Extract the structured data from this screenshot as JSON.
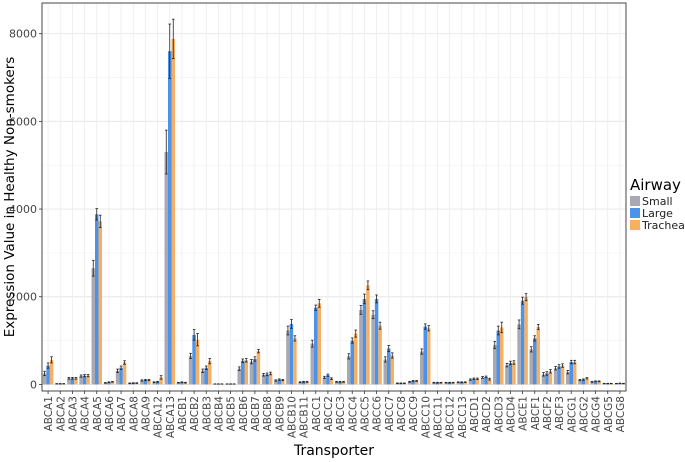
{
  "chart_data": {
    "type": "bar",
    "xlabel": "Transporter",
    "ylabel": "Expression Value in Healthy Non-smokers",
    "ylim": [
      -150,
      8700
    ],
    "yticks": [
      0,
      2000,
      4000,
      6000,
      8000
    ],
    "grid": true,
    "legend": {
      "title": "Airway",
      "placement": "right"
    },
    "colors": {
      "Small": "#a9a9b4",
      "Large": "#4c92e8",
      "Trachea": "#f5b066"
    },
    "categories": [
      "ABCA1",
      "ABCA2",
      "ABCA3",
      "ABCA4",
      "ABCA5",
      "ABCA6",
      "ABCA7",
      "ABCA8",
      "ABCA9",
      "ABCA12",
      "ABCA13",
      "ABCB1",
      "ABCB2",
      "ABCB3",
      "ABCB4",
      "ABCB5",
      "ABCB6",
      "ABCB7",
      "ABCB8",
      "ABCB9",
      "ABCB10",
      "ABCB11",
      "ABCC1",
      "ABCC2",
      "ABCC3",
      "ABCC4",
      "ABCC5",
      "ABCC6",
      "ABCC7",
      "ABCC8",
      "ABCC9",
      "ABCC10",
      "ABCC11",
      "ABCC12",
      "ABCC13",
      "ABCD1",
      "ABCD2",
      "ABCD3",
      "ABCD4",
      "ABCE1",
      "ABCF1",
      "ABCF2",
      "ABCF3",
      "ABCG1",
      "ABCG2",
      "ABCG4",
      "ABCG5",
      "ABCG8"
    ],
    "series": [
      {
        "name": "Small",
        "values": [
          250,
          15,
          140,
          190,
          2650,
          35,
          310,
          25,
          90,
          50,
          5300,
          40,
          650,
          310,
          10,
          10,
          360,
          520,
          220,
          90,
          1230,
          50,
          930,
          160,
          60,
          640,
          1700,
          1590,
          570,
          25,
          60,
          750,
          40,
          40,
          50,
          110,
          160,
          900,
          440,
          1370,
          800,
          230,
          370,
          280,
          100,
          60,
          20,
          20
        ],
        "errors": [
          50,
          5,
          20,
          25,
          180,
          8,
          40,
          8,
          15,
          10,
          500,
          8,
          60,
          40,
          3,
          3,
          40,
          50,
          30,
          15,
          100,
          10,
          80,
          25,
          10,
          60,
          100,
          90,
          60,
          8,
          10,
          60,
          8,
          8,
          8,
          15,
          20,
          80,
          40,
          100,
          60,
          40,
          40,
          40,
          15,
          10,
          5,
          5
        ]
      },
      {
        "name": "Large",
        "values": [
          430,
          15,
          140,
          200,
          3880,
          50,
          380,
          30,
          100,
          60,
          7600,
          50,
          1130,
          380,
          10,
          10,
          540,
          580,
          230,
          110,
          1380,
          60,
          1750,
          210,
          60,
          1000,
          1950,
          1950,
          820,
          25,
          80,
          1320,
          40,
          40,
          50,
          130,
          170,
          1230,
          490,
          1910,
          1050,
          250,
          410,
          510,
          110,
          70,
          20,
          25
        ],
        "errors": [
          60,
          5,
          20,
          25,
          130,
          8,
          40,
          8,
          15,
          10,
          620,
          8,
          120,
          40,
          3,
          3,
          40,
          50,
          30,
          15,
          100,
          10,
          60,
          25,
          10,
          60,
          110,
          90,
          70,
          8,
          10,
          60,
          8,
          8,
          8,
          15,
          20,
          100,
          40,
          80,
          60,
          40,
          40,
          40,
          15,
          10,
          5,
          5
        ]
      },
      {
        "name": "Trachea",
        "values": [
          560,
          15,
          140,
          200,
          3720,
          60,
          500,
          30,
          100,
          160,
          7880,
          40,
          1020,
          530,
          10,
          10,
          550,
          760,
          250,
          100,
          1050,
          60,
          1850,
          130,
          60,
          1160,
          2260,
          1340,
          660,
          25,
          80,
          1280,
          40,
          40,
          50,
          130,
          120,
          1300,
          500,
          1990,
          1310,
          300,
          430,
          510,
          140,
          70,
          20,
          20
        ],
        "errors": [
          70,
          5,
          20,
          25,
          140,
          8,
          40,
          8,
          15,
          40,
          450,
          8,
          140,
          60,
          3,
          3,
          40,
          40,
          30,
          15,
          60,
          10,
          90,
          20,
          10,
          80,
          100,
          80,
          60,
          8,
          10,
          60,
          8,
          8,
          8,
          15,
          20,
          120,
          40,
          80,
          60,
          40,
          40,
          40,
          15,
          10,
          5,
          5
        ]
      }
    ]
  }
}
